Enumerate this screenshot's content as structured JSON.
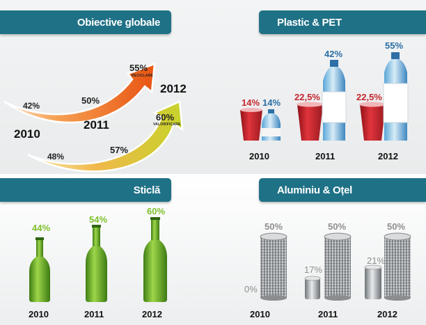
{
  "sections": {
    "objective": {
      "title": "Obiective globale",
      "years": [
        "2010",
        "2011",
        "2012"
      ],
      "recycling": {
        "values": [
          "42%",
          "50%",
          "55%"
        ],
        "label": "RECICLARE"
      },
      "recovery": {
        "values": [
          "48%",
          "57%",
          "60%"
        ],
        "label": "VALORIFICARE"
      }
    },
    "plastic": {
      "title": "Plastic & PET",
      "groups": [
        {
          "year": "2010",
          "cup": "14%",
          "bottle": "14%"
        },
        {
          "year": "2011",
          "cup": "22,5%",
          "bottle": "42%"
        },
        {
          "year": "2012",
          "cup": "22,5%",
          "bottle": "55%"
        }
      ]
    },
    "glass": {
      "title": "Sticlă",
      "groups": [
        {
          "year": "2010",
          "value": "44%"
        },
        {
          "year": "2011",
          "value": "54%"
        },
        {
          "year": "2012",
          "value": "60%"
        }
      ]
    },
    "metal": {
      "title": "Aluminiu & Oțel",
      "groups": [
        {
          "year": "2010",
          "small": "0%",
          "big": "50%"
        },
        {
          "year": "2011",
          "small": "17%",
          "big": "50%"
        },
        {
          "year": "2012",
          "small": "21%",
          "big": "50%"
        }
      ]
    }
  },
  "colors": {
    "header": "#1f7186",
    "recycling_arrow": "#f26a1b",
    "recovery_arrow": "#c9d12a",
    "plastic_cup": "#c4262e",
    "plastic_bottle": "#2a6ea3",
    "glass": "#7fbf2a",
    "metal": "#8e8e8e"
  }
}
